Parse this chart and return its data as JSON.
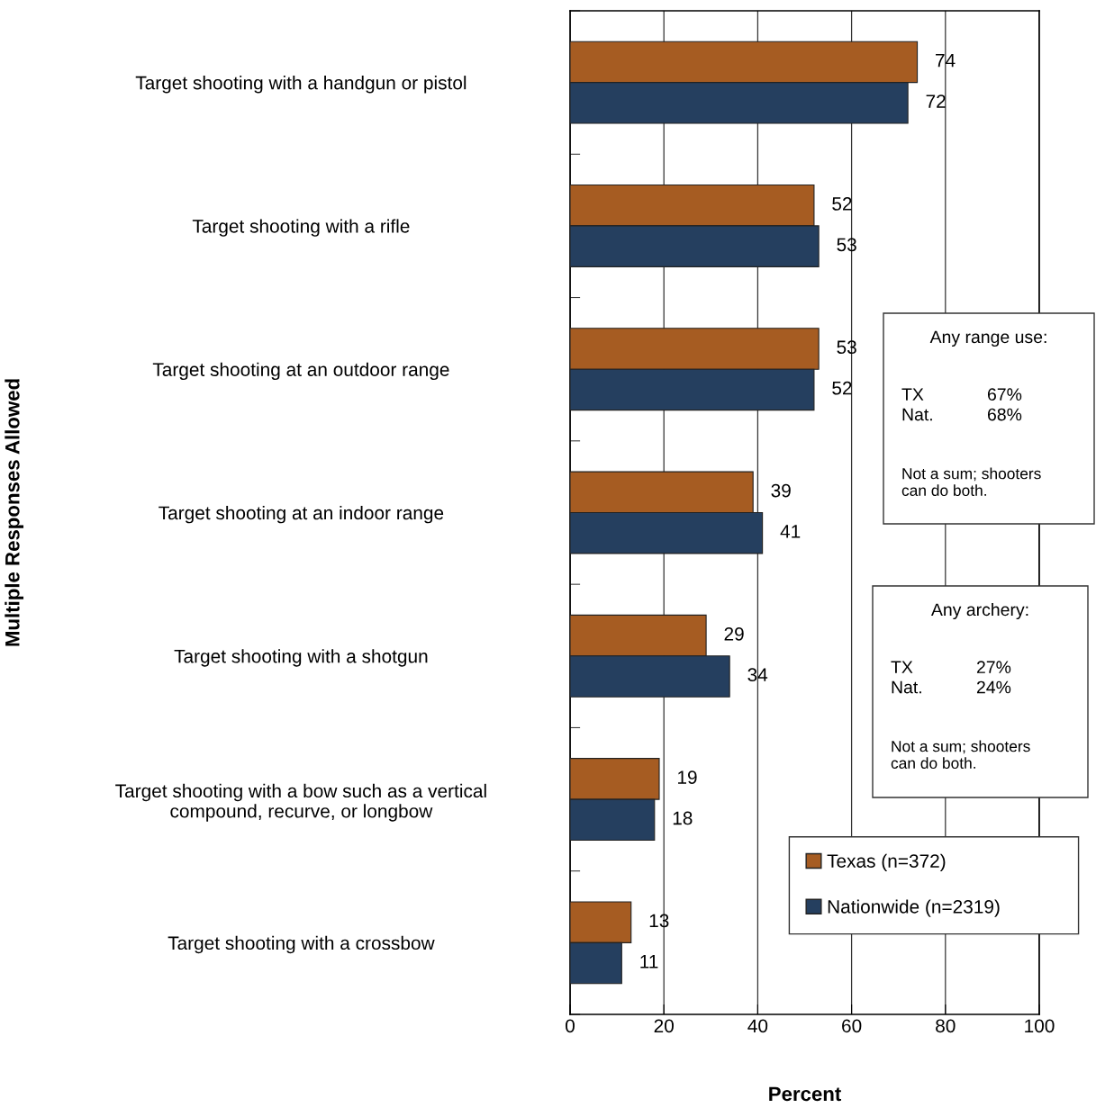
{
  "chart_data": {
    "type": "bar",
    "orientation": "horizontal",
    "categories": [
      "Target shooting with a handgun or pistol",
      "Target shooting with a rifle",
      "Target shooting at an outdoor range",
      "Target shooting at an indoor range",
      "Target shooting with a shotgun",
      "Target shooting with a bow such as a vertical\ncompound, recurve, or longbow",
      "Target shooting with a crossbow"
    ],
    "series": [
      {
        "name": "Texas (n=372)",
        "color": "#a65c22",
        "values": [
          74,
          52,
          53,
          39,
          29,
          19,
          13
        ]
      },
      {
        "name": "Nationwide (n=2319)",
        "color": "#253f5f",
        "values": [
          72,
          53,
          52,
          41,
          34,
          18,
          11
        ]
      }
    ],
    "xlim": [
      0,
      100
    ],
    "xticks": [
      0,
      20,
      40,
      60,
      80,
      100
    ],
    "xlabel": "Percent",
    "ylabel": "Multiple Responses Allowed",
    "data_labels": true,
    "grid": "x",
    "legend": "bottom right",
    "annotations": [
      "Any range use:",
      "TX\nNat.",
      "67%\n68%",
      "Not a sum; shooters\ncan do both.",
      "Any archery:",
      "TX\nNat.",
      "27%\n24%",
      "Not a sum; shooters\ncan do both."
    ]
  }
}
